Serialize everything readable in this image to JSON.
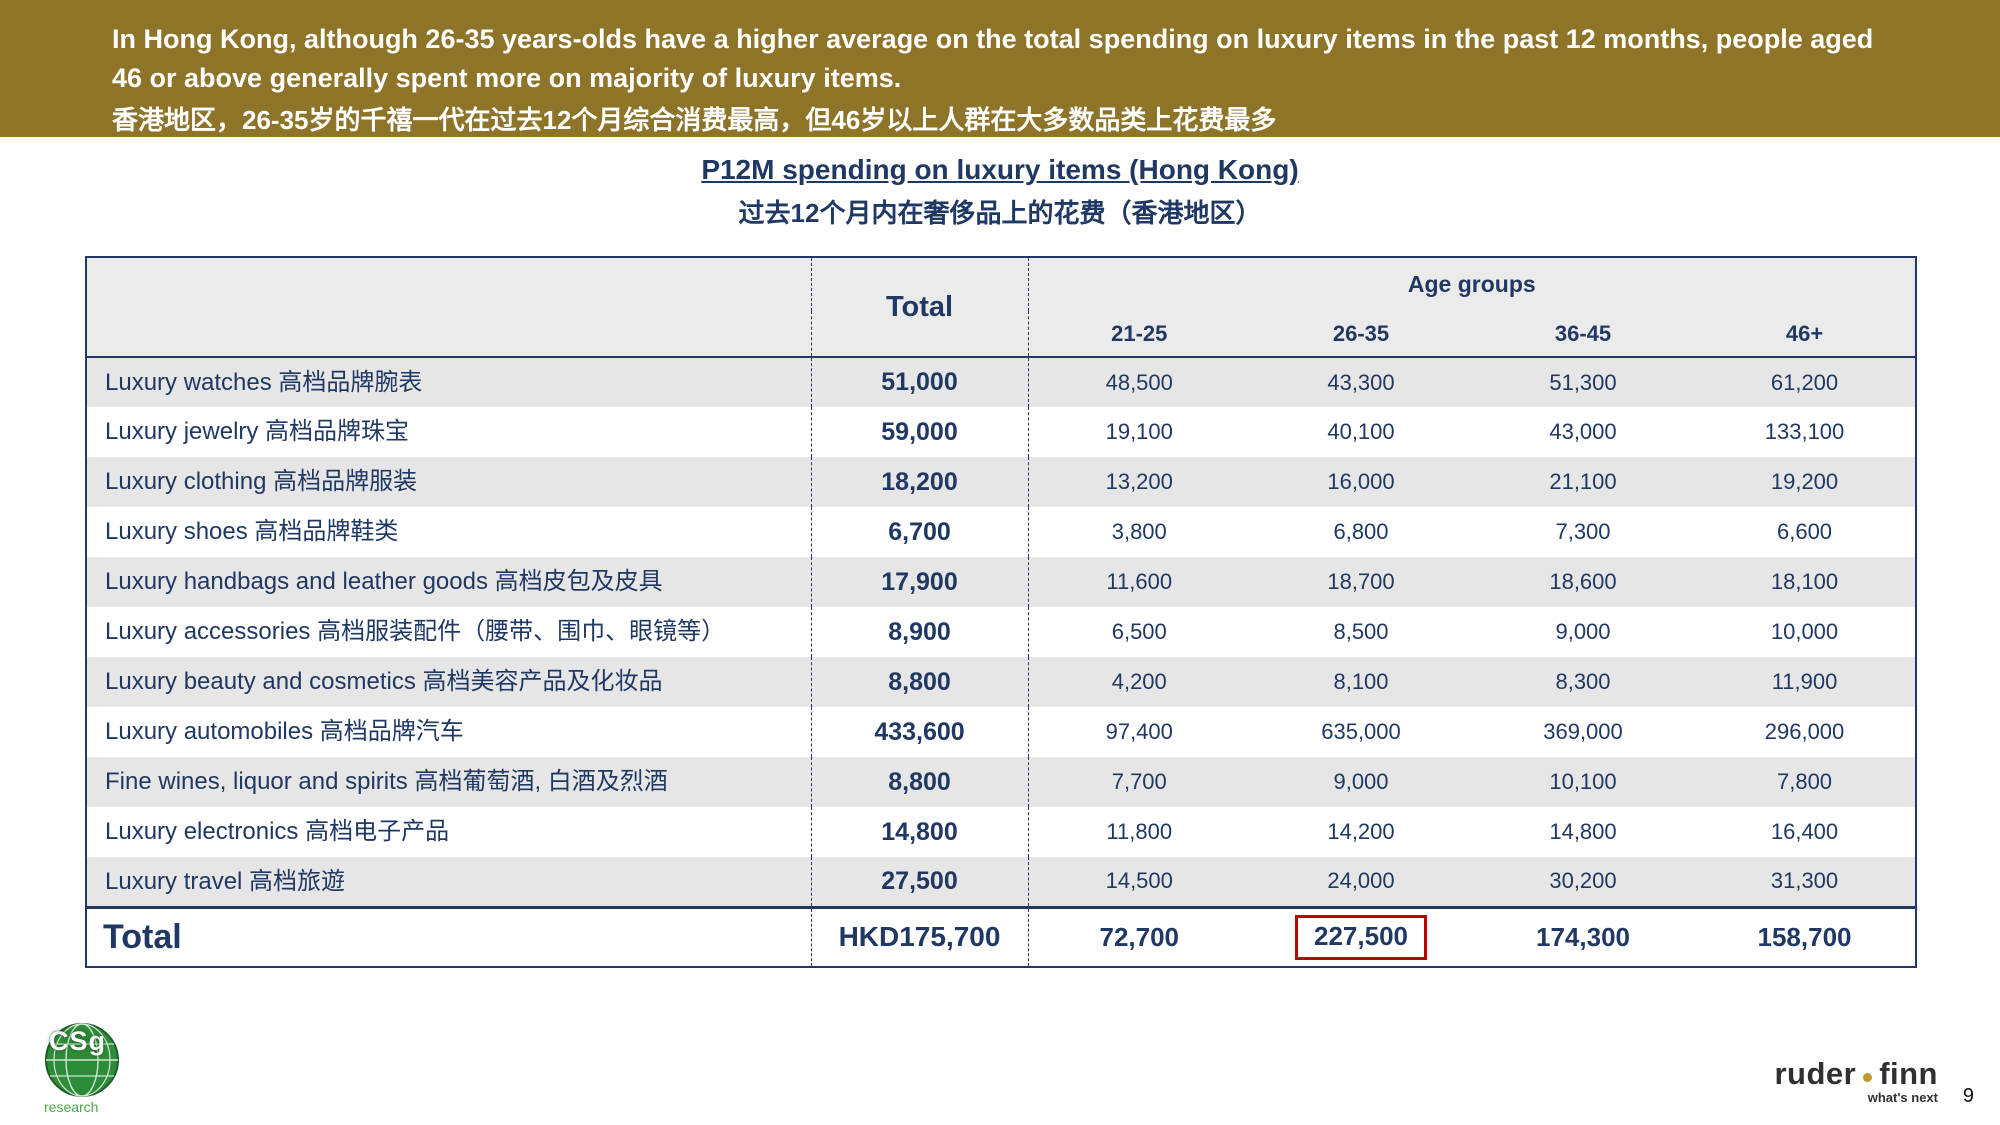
{
  "banner": {
    "line1": "In Hong Kong, although 26-35 years-olds have a higher average on the total spending on luxury items in the past 12 months, people aged 46 or above generally spent more on majority of luxury items.",
    "line2": "香港地区，26-35岁的千禧一代在过去12个月综合消费最高，但46岁以上人群在大多数品类上花费最多"
  },
  "title": {
    "en": "P12M spending on luxury items (Hong Kong)",
    "zh": "过去12个月内在奢侈品上的花费（香港地区）"
  },
  "table": {
    "header": {
      "total": "Total",
      "age_groups": "Age groups",
      "ages": [
        "21-25",
        "26-35",
        "36-45",
        "46+"
      ]
    },
    "rows": [
      {
        "label": "Luxury watches 高档品牌腕表",
        "total": "51,000",
        "values": [
          "48,500",
          "43,300",
          "51,300",
          "61,200"
        ]
      },
      {
        "label": "Luxury jewelry 高档品牌珠宝",
        "total": "59,000",
        "values": [
          "19,100",
          "40,100",
          "43,000",
          "133,100"
        ]
      },
      {
        "label": "Luxury clothing 高档品牌服装",
        "total": "18,200",
        "values": [
          "13,200",
          "16,000",
          "21,100",
          "19,200"
        ]
      },
      {
        "label": "Luxury shoes 高档品牌鞋类",
        "total": "6,700",
        "values": [
          "3,800",
          "6,800",
          "7,300",
          "6,600"
        ]
      },
      {
        "label": "Luxury handbags and leather goods 高档皮包及皮具",
        "total": "17,900",
        "values": [
          "11,600",
          "18,700",
          "18,600",
          "18,100"
        ]
      },
      {
        "label": "Luxury accessories 高档服装配件（腰带、围巾、眼镜等）",
        "total": "8,900",
        "values": [
          "6,500",
          "8,500",
          "9,000",
          "10,000"
        ]
      },
      {
        "label": "Luxury beauty and cosmetics 高档美容产品及化妆品",
        "total": "8,800",
        "values": [
          "4,200",
          "8,100",
          "8,300",
          "11,900"
        ]
      },
      {
        "label": "Luxury automobiles 高档品牌汽车",
        "total": "433,600",
        "values": [
          "97,400",
          "635,000",
          "369,000",
          "296,000"
        ]
      },
      {
        "label": "Fine wines, liquor and spirits 高档葡萄酒, 白酒及烈酒",
        "total": "8,800",
        "values": [
          "7,700",
          "9,000",
          "10,100",
          "7,800"
        ]
      },
      {
        "label": "Luxury electronics 高档电子产品",
        "total": "14,800",
        "values": [
          "11,800",
          "14,200",
          "14,800",
          "16,400"
        ]
      },
      {
        "label": "Luxury travel 高档旅遊",
        "total": "27,500",
        "values": [
          "14,500",
          "24,000",
          "30,200",
          "31,300"
        ]
      }
    ],
    "total_row": {
      "label": "Total",
      "total": "HKD175,700",
      "values": [
        "72,700",
        "227,500",
        "174,300",
        "158,700"
      ],
      "highlighted_value": "227,500",
      "highlighted_column": "26-35"
    }
  },
  "footer": {
    "csg_logo": {
      "text": "CSg",
      "sub": "research"
    },
    "ruder_finn_logo": {
      "word1": "ruder",
      "word2": "finn",
      "tagline": "what's next"
    },
    "page_number": "9"
  },
  "colors": {
    "banner_gold": "#8E7428",
    "navy_text": "#1F3864",
    "row_stripe_gray": "#E7E6E6",
    "header_gray": "#ECEBEB",
    "highlight_red": "#C00000",
    "logo_gold_dot": "#BE9B30",
    "logo_green": "#2E8B3A"
  }
}
